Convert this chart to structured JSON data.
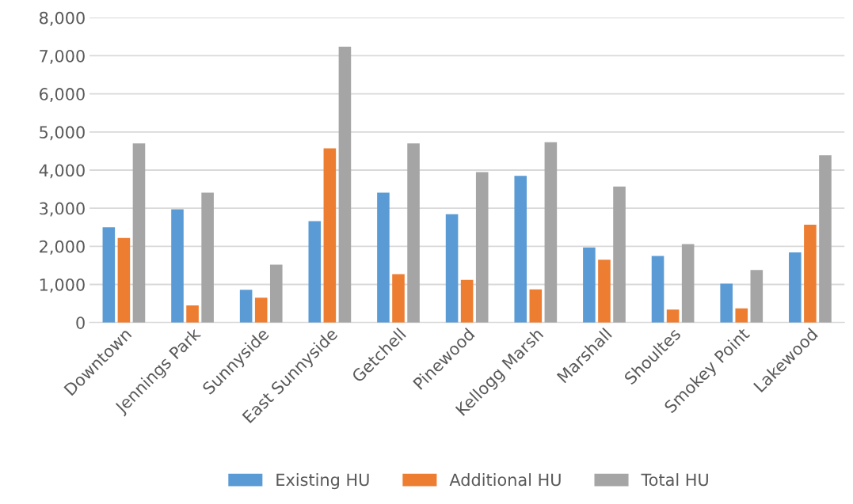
{
  "chart_data": {
    "type": "bar",
    "categories": [
      "Downtown",
      "Jennings Park",
      "Sunnyside",
      "East Sunnyside",
      "Getchell",
      "Pinewood",
      "Kellogg Marsh",
      "Marshall",
      "Shoultes",
      "Smokey Point",
      "Lakewood"
    ],
    "series": [
      {
        "name": "Existing HU",
        "color": "#5b9bd5",
        "values": [
          2500,
          2970,
          860,
          2660,
          3410,
          2840,
          3850,
          1970,
          1750,
          1020,
          1840
        ]
      },
      {
        "name": "Additional HU",
        "color": "#ed7d31",
        "values": [
          2220,
          450,
          650,
          4570,
          1270,
          1120,
          870,
          1650,
          340,
          370,
          2570
        ]
      },
      {
        "name": "Total HU",
        "color": "#a5a5a5",
        "values": [
          4700,
          3410,
          1520,
          7240,
          4700,
          3950,
          4730,
          3570,
          2060,
          1380,
          4390
        ]
      }
    ],
    "ylim": [
      0,
      8000
    ],
    "yticks": [
      {
        "value": 0,
        "label": "0"
      },
      {
        "value": 1000,
        "label": "1,000"
      },
      {
        "value": 2000,
        "label": "2,000"
      },
      {
        "value": 3000,
        "label": "3,000"
      },
      {
        "value": 4000,
        "label": "4,000"
      },
      {
        "value": 5000,
        "label": "5,000"
      },
      {
        "value": 6000,
        "label": "6,000"
      },
      {
        "value": 7000,
        "label": "7,000"
      },
      {
        "value": 8000,
        "label": "8,000"
      }
    ],
    "grid": "y",
    "legend": "bottom"
  }
}
